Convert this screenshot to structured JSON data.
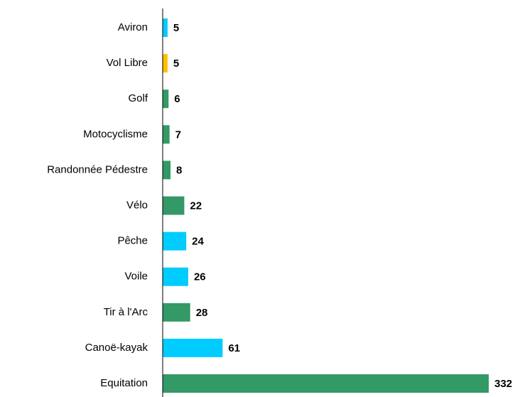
{
  "chart_data": {
    "type": "bar",
    "orientation": "horizontal",
    "categories": [
      "Aviron",
      "Vol Libre",
      "Golf",
      "Motocyclisme",
      "Randonnée Pédestre",
      "Vélo",
      "Pêche",
      "Voile",
      "Tir à l'Arc",
      "Canoë-kayak",
      "Equitation"
    ],
    "values": [
      5,
      5,
      6,
      7,
      8,
      22,
      24,
      26,
      28,
      61,
      332
    ],
    "colors": [
      "#00ccff",
      "#ffc000",
      "#339966",
      "#339966",
      "#339966",
      "#339966",
      "#00ccff",
      "#00ccff",
      "#339966",
      "#00ccff",
      "#339966"
    ]
  }
}
